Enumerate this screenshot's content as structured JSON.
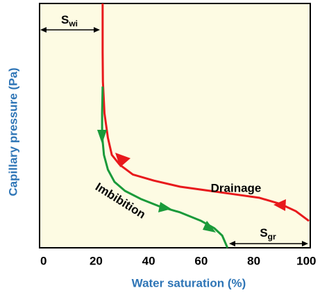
{
  "chart_data": {
    "type": "line",
    "x_label": "Water saturation  (%)",
    "y_label": "Capillary pressure (Pa)",
    "xlim": [
      -1.5,
      101.5
    ],
    "ylim": [
      0,
      100
    ],
    "xticks": [
      0,
      20,
      40,
      60,
      80,
      100
    ],
    "series": [
      {
        "name": "Drainage",
        "color": "#e8191c",
        "x": [
          22.5,
          22.5,
          22.6,
          23.2,
          24.5,
          26,
          29,
          34,
          42,
          52,
          62,
          72,
          82,
          90,
          96,
          101
        ],
        "values": [
          100,
          80,
          68,
          55,
          45,
          38,
          34,
          30,
          27.5,
          25,
          23.5,
          22,
          20.5,
          18,
          15,
          11
        ]
      },
      {
        "name": "Imbibition",
        "color": "#1a9a3a",
        "x": [
          22.5,
          22.3,
          22.3,
          23,
          24.5,
          27,
          31,
          37,
          44,
          52,
          60,
          65,
          68,
          70
        ],
        "values": [
          66,
          55,
          46,
          38,
          32,
          27,
          23.3,
          20,
          17,
          14.5,
          11,
          8,
          5,
          0
        ]
      }
    ],
    "annotations": [
      {
        "text": "S",
        "subscript": "wi"
      },
      {
        "text": "S",
        "subscript": "gr"
      }
    ]
  }
}
